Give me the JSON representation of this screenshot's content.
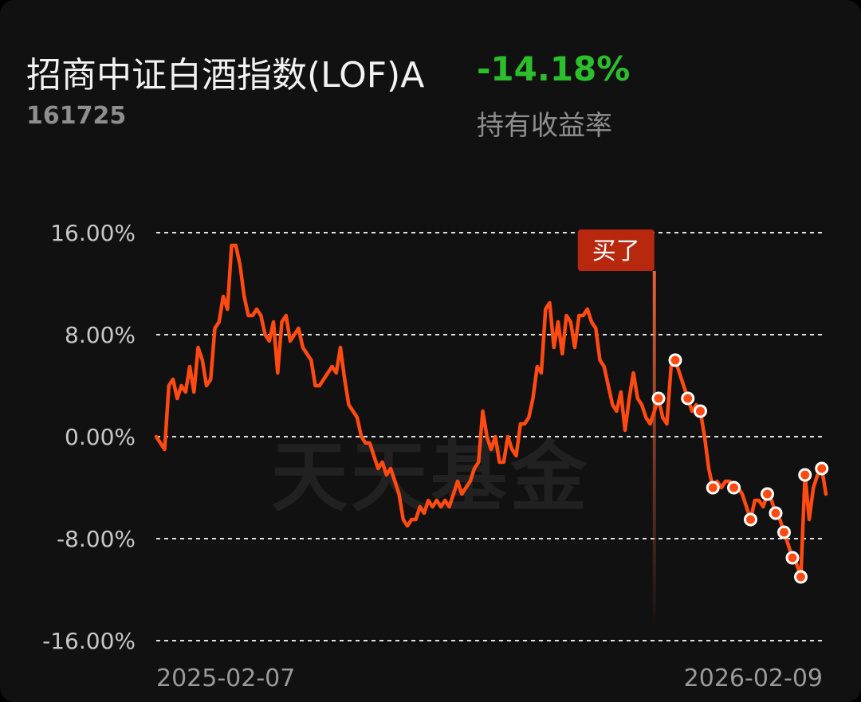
{
  "header": {
    "fund_name": "招商中证白酒指数(LOF)A",
    "fund_code": "161725",
    "return_value": "-14.18%",
    "return_label": "持有收益率"
  },
  "watermark": "天天基金",
  "colors": {
    "line": "#ff4a12",
    "return_negative": "#2bbf2b",
    "buy_badge": "#b8280e",
    "grid": "#e0e0e0"
  },
  "chart_data": {
    "type": "line",
    "x_start_label": "2025-02-07",
    "x_end_label": "2026-02-09",
    "y_ticks": [
      "16.00%",
      "8.00%",
      "0.00%",
      "-8.00%",
      "-16.00%"
    ],
    "y_tick_values": [
      16,
      8,
      0,
      -8,
      -16
    ],
    "ylim": [
      -16,
      16
    ],
    "grid": true,
    "buy_marker": {
      "label": "买了",
      "index": 119
    },
    "series": [
      {
        "values": [
          0,
          -0.5,
          -1,
          4,
          4.5,
          3,
          4,
          3.5,
          5.5,
          3.5,
          7,
          6,
          4,
          4.5,
          8.5,
          9,
          11,
          10,
          15,
          15,
          13.5,
          11,
          9.5,
          9.5,
          10,
          9.5,
          8,
          7.5,
          9,
          5,
          9,
          9.5,
          7.5,
          8,
          8.5,
          7,
          6.5,
          6,
          4,
          4,
          4.5,
          5,
          5.5,
          5,
          7,
          4.5,
          2.5,
          2,
          1.5,
          0,
          -0.5,
          -0.5,
          -1.5,
          -2.5,
          -2,
          -3,
          -2.5,
          -3.5,
          -4.5,
          -6.5,
          -7,
          -6.5,
          -6.5,
          -5.5,
          -6,
          -5,
          -5.5,
          -5,
          -5.5,
          -5,
          -5.5,
          -4.5,
          -3.5,
          -4.5,
          -4,
          -3.5,
          -2.5,
          -2,
          2,
          0,
          -1,
          0,
          -2,
          -2,
          0,
          -1,
          -1.5,
          1,
          1,
          1.5,
          3,
          5.5,
          5,
          10,
          10.5,
          7,
          9,
          6.5,
          9.5,
          9,
          7,
          9.5,
          9.5,
          10,
          9,
          8.5,
          6,
          5.5,
          4,
          2.5,
          2,
          3.5,
          0.5,
          3,
          5,
          3,
          2.5,
          1.5,
          1,
          2,
          3,
          1.5,
          1,
          5.5,
          6,
          5,
          4,
          3,
          2,
          2.5,
          2,
          0,
          -2.5,
          -4,
          -3.5,
          -4,
          -3.5,
          -3.5,
          -4,
          -4,
          -4.5,
          -5.5,
          -6.5,
          -5,
          -5,
          -5.5,
          -4.5,
          -5,
          -6,
          -6.5,
          -7.5,
          -8.5,
          -9.5,
          -10,
          -11,
          -3,
          -6.5,
          -4,
          -3,
          -2.5,
          -4.5
        ]
      }
    ]
  }
}
